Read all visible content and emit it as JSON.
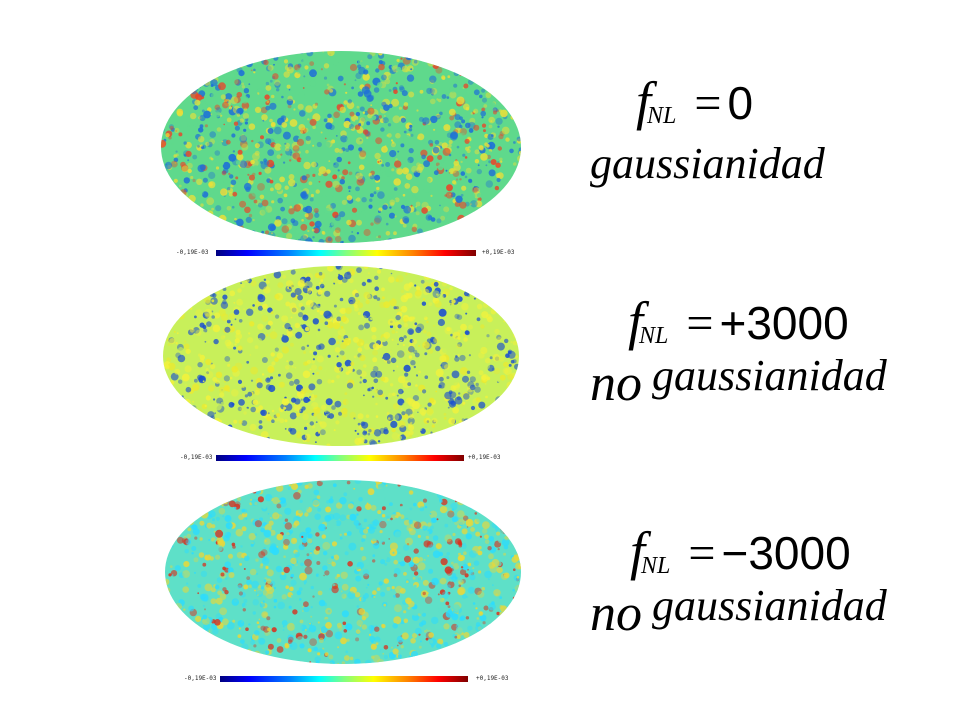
{
  "panels": [
    {
      "f_symbol": "f",
      "f_sub": "NL",
      "relation": "=",
      "value": "0",
      "prefix": "",
      "caption": "gaussianidad",
      "colorbar": {
        "min": "-0,19E-03",
        "max": "+0,19E-03"
      },
      "map_palette": {
        "base": "#5fd98c",
        "cool": "#1d6fd8",
        "warm": "#e8e03a",
        "hot": "#e8462a"
      }
    },
    {
      "f_symbol": "f",
      "f_sub": "NL",
      "relation": "=",
      "value": "+3000",
      "prefix": "no",
      "caption": "gaussianidad",
      "colorbar": {
        "min": "-0,19E-03",
        "max": "+0,19E-03"
      },
      "map_palette": {
        "base": "#c8f05a",
        "cool": "#1a4fd0",
        "warm": "#f2f23c",
        "hot": "#eaea30"
      }
    },
    {
      "f_symbol": "f",
      "f_sub": "NL",
      "relation": "=",
      "value": "−3000",
      "prefix": "no",
      "caption": "gaussianidad",
      "colorbar": {
        "min": "-0,19E-03",
        "max": "+0,19E-03"
      },
      "map_palette": {
        "base": "#5ee0c8",
        "cool": "#2bdcff",
        "warm": "#e8d83a",
        "hot": "#d8301e"
      }
    }
  ]
}
